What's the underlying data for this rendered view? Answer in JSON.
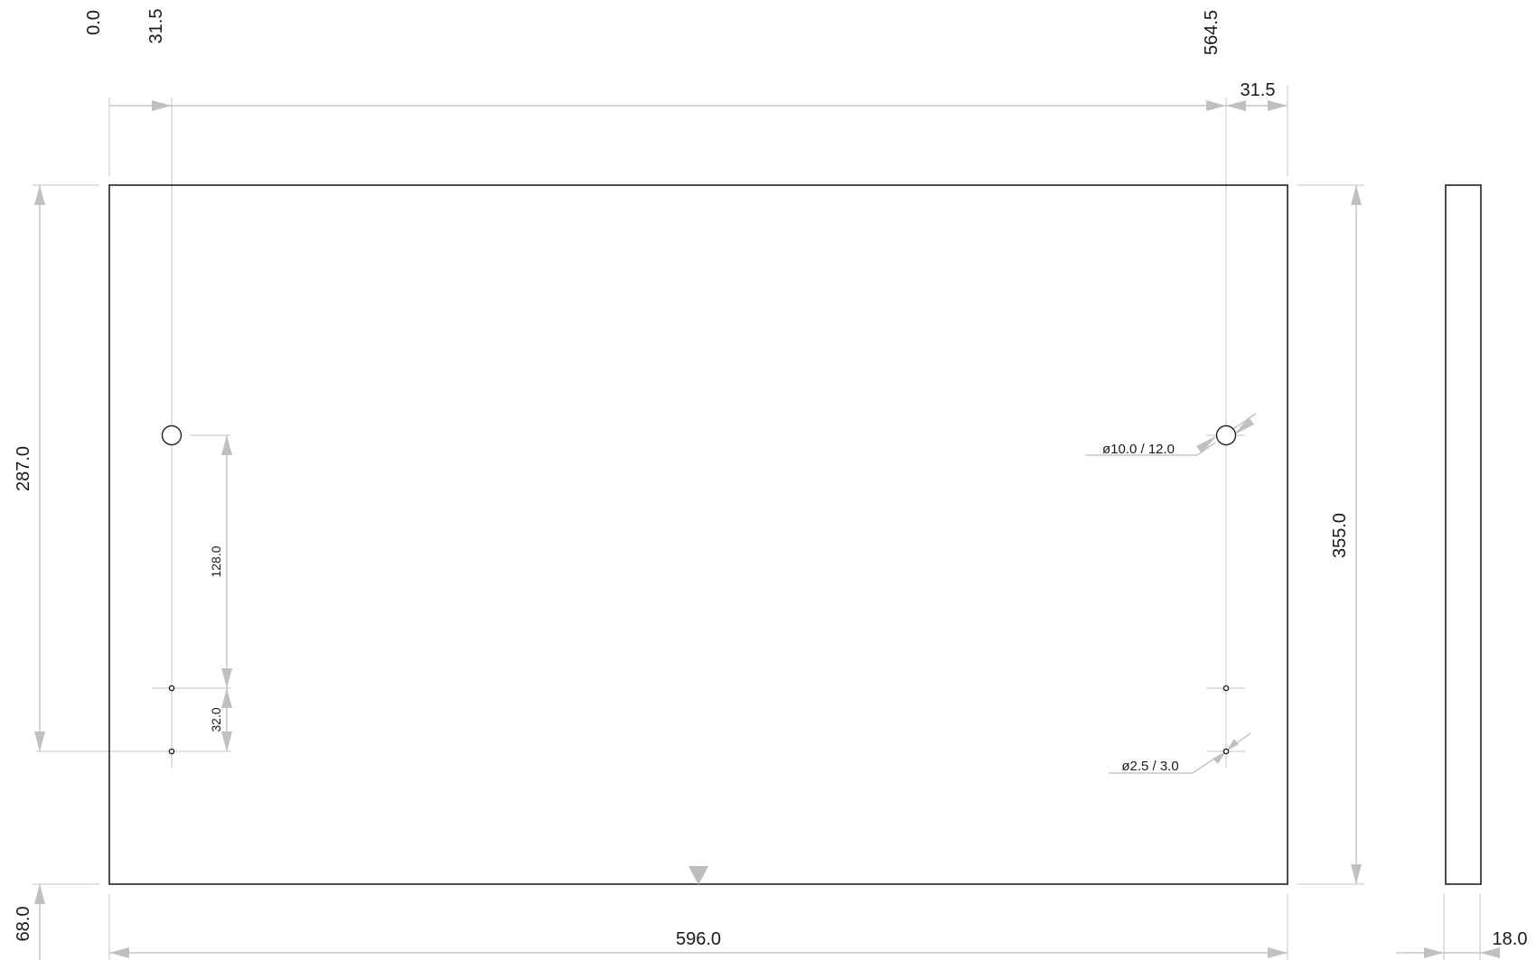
{
  "drawing": {
    "panel": {
      "width": 596.0,
      "height": 355.0,
      "thickness": 18.0
    },
    "dimensions": {
      "origin": "0.0",
      "left_hole_offset": "31.5",
      "right_hole_position": "564.5",
      "right_hole_offset": "31.5",
      "left_height": "287.0",
      "bottom_offset": "68.0",
      "overall_width": "596.0",
      "overall_height": "355.0",
      "thickness": "18.0",
      "hole_spacing": "128.0",
      "small_hole_spacing": "32.0"
    },
    "notes": {
      "large_hole": "ø10.0 / 12.0",
      "small_hole": "ø2.5 / 3.0"
    }
  }
}
